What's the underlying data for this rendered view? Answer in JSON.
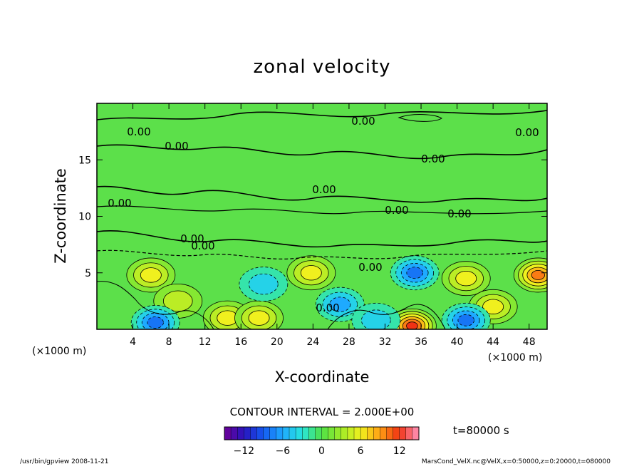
{
  "chart_data": {
    "type": "heatmap",
    "title": "zonal velocity",
    "xlabel": "X-coordinate",
    "ylabel": "Z-coordinate",
    "x_unit": "(×1000 m)",
    "z_unit": "(×1000 m)",
    "xlim": [
      0,
      50
    ],
    "ylim": [
      0,
      20
    ],
    "x_ticks": [
      "4",
      "8",
      "12",
      "16",
      "20",
      "24",
      "28",
      "32",
      "36",
      "40",
      "44",
      "48"
    ],
    "y_ticks": [
      "5",
      "10",
      "15"
    ],
    "contour_interval_text": "CONTOUR INTERVAL = 2.000E+00",
    "time_text": "t=80000 s",
    "colorbar": {
      "range": [
        -15,
        15
      ],
      "ticks": [
        "−12",
        "−6",
        "0",
        "6",
        "12"
      ],
      "tick_values": [
        -12,
        -6,
        0,
        6,
        12
      ]
    },
    "contour_labels": [
      "0.00",
      "0.00",
      "0.00",
      "0.00",
      "0.00",
      "0.00",
      "0.00",
      "0.00",
      "0.00",
      "0.00",
      "0.00",
      "0.00",
      "0.00"
    ],
    "features": [
      {
        "x": 6.0,
        "z": 4.8,
        "value": 6
      },
      {
        "x": 9.0,
        "z": 2.5,
        "value": 4
      },
      {
        "x": 14.5,
        "z": 1.0,
        "value": 5
      },
      {
        "x": 18.0,
        "z": 1.0,
        "value": 5
      },
      {
        "x": 18.5,
        "z": 4.0,
        "value": -4
      },
      {
        "x": 23.8,
        "z": 5.0,
        "value": 6
      },
      {
        "x": 27.0,
        "z": 2.2,
        "value": -5
      },
      {
        "x": 35.0,
        "z": 0.3,
        "value": 12
      },
      {
        "x": 35.3,
        "z": 5.0,
        "value": -8
      },
      {
        "x": 41.0,
        "z": 4.5,
        "value": 6
      },
      {
        "x": 44.0,
        "z": 2.0,
        "value": 5
      },
      {
        "x": 49.0,
        "z": 4.8,
        "value": 10
      },
      {
        "x": 6.5,
        "z": 0.6,
        "value": -8
      },
      {
        "x": 41.0,
        "z": 0.8,
        "value": -7
      },
      {
        "x": 31.0,
        "z": 0.8,
        "value": -4
      }
    ]
  },
  "footer": {
    "left": "/usr/bin/gpview   2008-11-21",
    "right": "MarsCond_VelX.nc@VelX,x=0:50000,z=0:20000,t=080000"
  }
}
